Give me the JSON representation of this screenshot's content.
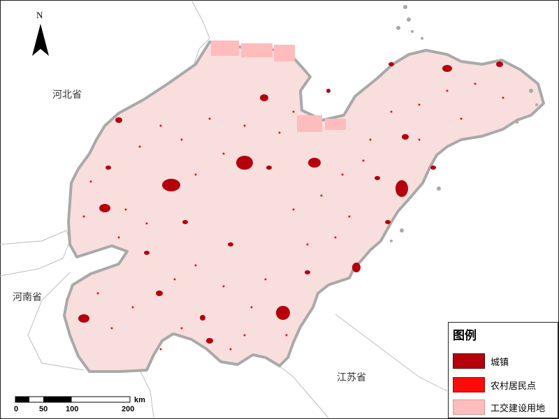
{
  "north_arrow": {
    "label": "N"
  },
  "regions": {
    "hebei": "河北省",
    "henan": "河南省",
    "jiangsu": "江苏省"
  },
  "legend": {
    "title": "图例",
    "items": [
      {
        "label": "城镇",
        "color": "#b5000c"
      },
      {
        "label": "农村居民点",
        "color": "#ff0a0a"
      },
      {
        "label": "工交建设用地",
        "color": "#ffbcbc"
      }
    ]
  },
  "scale_bar": {
    "ticks": [
      "0",
      "50",
      "100",
      "200"
    ],
    "unit": "km"
  },
  "colors": {
    "province_fill": "#f9dede",
    "border": "#a9a9a9",
    "sea": "#ffffff"
  }
}
